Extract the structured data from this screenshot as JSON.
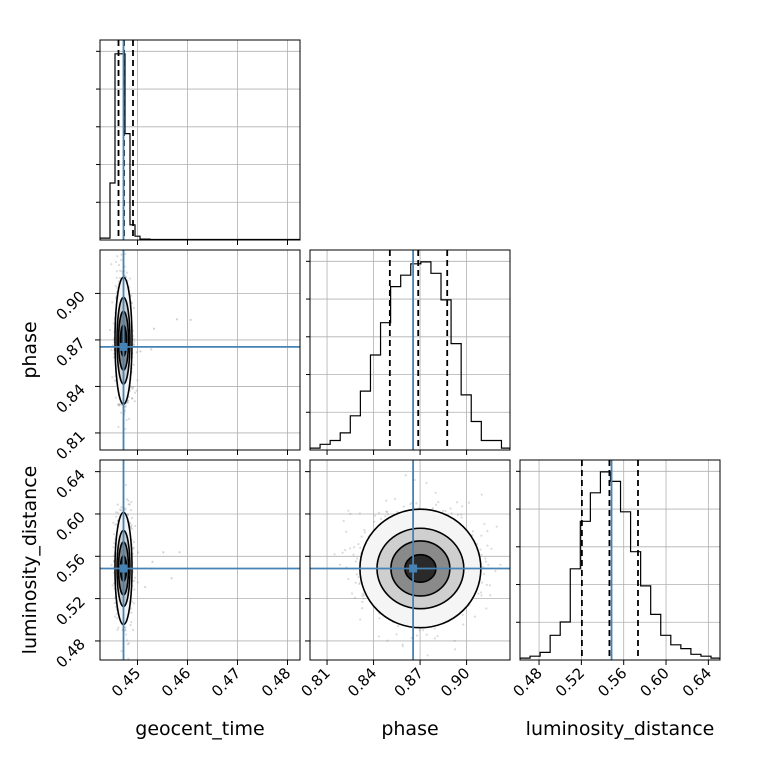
{
  "chart_data": {
    "type": "corner",
    "parameters": [
      "geocent_time",
      "phase",
      "luminosity_distance"
    ],
    "labels": {
      "geocent_time": "geocent_time",
      "phase": "phase",
      "luminosity_distance": "luminosity_distance"
    },
    "ranges": {
      "geocent_time": [
        0.4425,
        0.4825
      ],
      "phase": [
        0.799,
        0.928
      ],
      "luminosity_distance": [
        0.462,
        0.651
      ]
    },
    "ticks": {
      "geocent_time": [
        0.45,
        0.46,
        0.47,
        0.48
      ],
      "phase": [
        0.81,
        0.84,
        0.87,
        0.9
      ],
      "luminosity_distance": [
        0.48,
        0.52,
        0.56,
        0.6,
        0.64
      ]
    },
    "tick_labels": {
      "geocent_time": [
        "0.45",
        "0.46",
        "0.47",
        "0.48"
      ],
      "phase": [
        "0.81",
        "0.84",
        "0.87",
        "0.90"
      ],
      "luminosity_distance": [
        "0.48",
        "0.52",
        "0.56",
        "0.60",
        "0.64"
      ]
    },
    "truths": {
      "geocent_time": 0.4472,
      "phase": 0.8655,
      "luminosity_distance": 0.5485
    },
    "quantiles": {
      "geocent_time": [
        0.4462,
        0.4473,
        0.4491
      ],
      "phase": [
        0.8505,
        0.8688,
        0.8875
      ],
      "luminosity_distance": [
        0.5205,
        0.5465,
        0.5735
      ]
    },
    "histograms": {
      "geocent_time": {
        "bin_edges": [
          0.4425,
          0.4445,
          0.4455,
          0.4465,
          0.4475,
          0.4485,
          0.4495,
          0.4505,
          0.4515,
          0.4525,
          0.4825
        ],
        "heights": [
          0.01,
          0.3,
          0.98,
          0.98,
          0.56,
          0.08,
          0.02,
          0.005,
          0.005,
          0.003
        ]
      },
      "phase": {
        "bin_edges": [
          0.799,
          0.8055,
          0.812,
          0.8185,
          0.825,
          0.8315,
          0.838,
          0.8445,
          0.851,
          0.8575,
          0.864,
          0.8705,
          0.877,
          0.8835,
          0.89,
          0.8965,
          0.903,
          0.9095,
          0.916,
          0.9225,
          0.928
        ],
        "heights": [
          0.01,
          0.03,
          0.05,
          0.09,
          0.18,
          0.31,
          0.5,
          0.67,
          0.86,
          0.92,
          0.98,
          0.99,
          0.93,
          0.79,
          0.56,
          0.29,
          0.15,
          0.05,
          0.05,
          0.01
        ]
      },
      "luminosity_distance": {
        "bin_edges": [
          0.462,
          0.4715,
          0.481,
          0.4905,
          0.5,
          0.5095,
          0.519,
          0.5285,
          0.538,
          0.5475,
          0.557,
          0.5665,
          0.576,
          0.5855,
          0.595,
          0.6045,
          0.614,
          0.6235,
          0.633,
          0.6425,
          0.651
        ],
        "heights": [
          0.01,
          0.02,
          0.04,
          0.13,
          0.2,
          0.48,
          0.73,
          0.88,
          0.99,
          0.94,
          0.78,
          0.57,
          0.39,
          0.24,
          0.13,
          0.08,
          0.06,
          0.03,
          0.02,
          0.01
        ]
      }
    },
    "contours": {
      "geocent_time|phase": {
        "center": [
          0.4472,
          0.8695
        ],
        "half_widths": [
          [
            0.0017,
            0.041
          ],
          [
            0.0013,
            0.028
          ],
          [
            0.001,
            0.019
          ],
          [
            0.0006,
            0.01
          ]
        ]
      },
      "geocent_time|luminosity_distance": {
        "center": [
          0.4472,
          0.5485
        ],
        "half_widths": [
          [
            0.0017,
            0.053
          ],
          [
            0.0013,
            0.036
          ],
          [
            0.001,
            0.025
          ],
          [
            0.0006,
            0.012
          ]
        ]
      },
      "phase|luminosity_distance": {
        "center": [
          0.8702,
          0.5485
        ],
        "half_widths": [
          [
            0.039,
            0.056
          ],
          [
            0.028,
            0.038
          ],
          [
            0.019,
            0.026
          ],
          [
            0.01,
            0.013
          ]
        ]
      }
    },
    "colors": {
      "truth": "#4682b4",
      "ink": "#000000",
      "grid": "#b0b0b0",
      "samples": "#7f7f7f"
    },
    "grid": true
  }
}
